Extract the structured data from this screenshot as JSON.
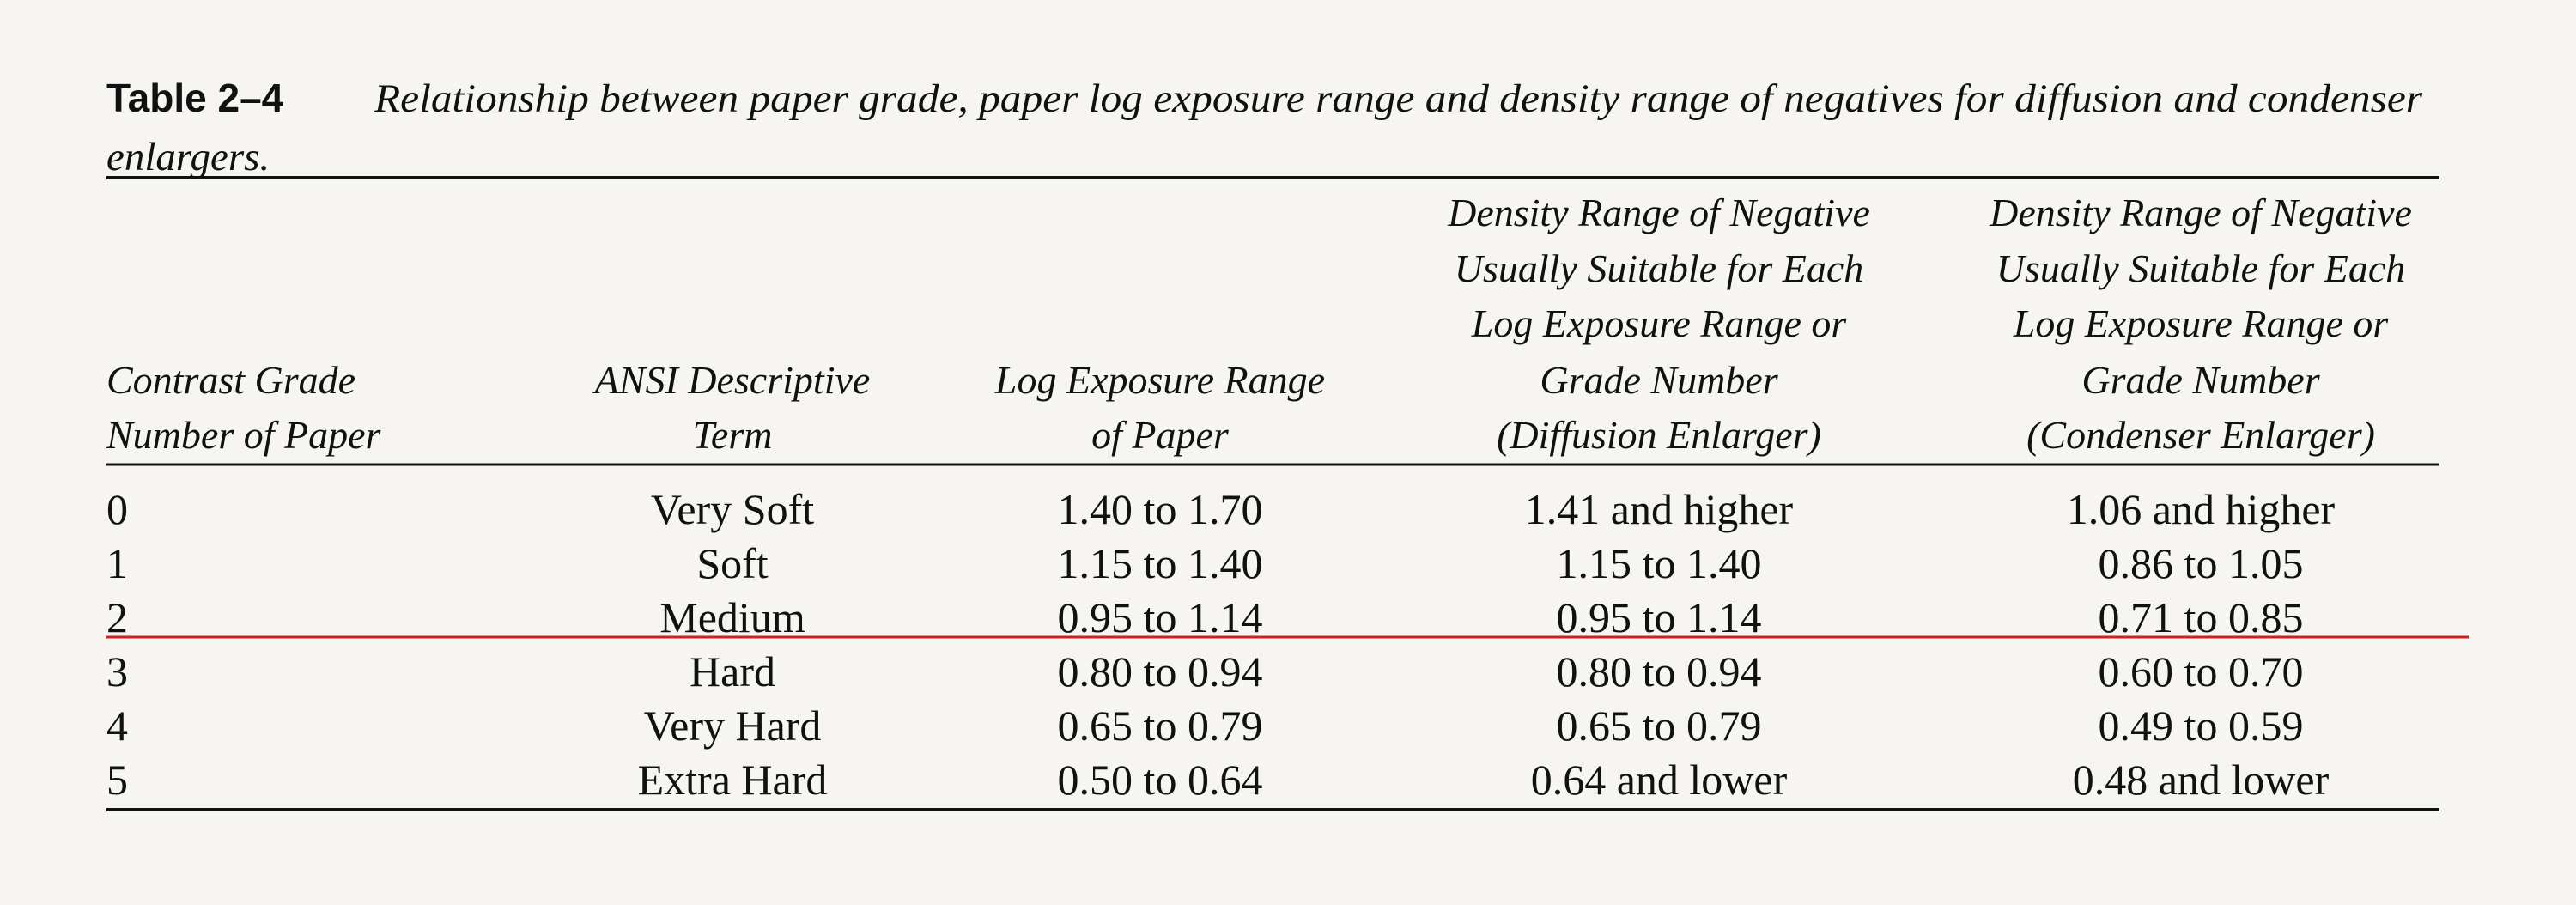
{
  "caption": {
    "label": "Table 2–4",
    "text": "Relationship between paper grade, paper log exposure range and density range of negatives for diffusion and condenser",
    "text_continued": "enlargers."
  },
  "table": {
    "headers": [
      [
        "Contrast Grade",
        "Number of Paper"
      ],
      [
        "ANSI Descriptive",
        "Term"
      ],
      [
        "Log Exposure Range",
        "of Paper"
      ],
      [
        "Density Range of Negative",
        "Usually Suitable for Each",
        "Log Exposure Range or",
        "Grade Number",
        "(Diffusion Enlarger)"
      ],
      [
        "Density Range of Negative",
        "Usually Suitable for Each",
        "Log Exposure Range or",
        "Grade Number",
        "(Condenser Enlarger)"
      ]
    ],
    "rows": [
      [
        "0",
        "Very Soft",
        "1.40 to 1.70",
        "1.41 and higher",
        "1.06 and higher"
      ],
      [
        "1",
        "Soft",
        "1.15 to 1.40",
        "1.15 to 1.40",
        "0.86 to 1.05"
      ],
      [
        "2",
        "Medium",
        "0.95 to 1.14",
        "0.95 to 1.14",
        "0.71 to 0.85"
      ],
      [
        "3",
        "Hard",
        "0.80 to 0.94",
        "0.80 to 0.94",
        "0.60 to 0.70"
      ],
      [
        "4",
        "Very Hard",
        "0.65 to 0.79",
        "0.65 to 0.79",
        "0.49 to 0.59"
      ],
      [
        "5",
        "Extra Hard",
        "0.50 to 0.64",
        "0.64 and lower",
        "0.48 and lower"
      ]
    ]
  }
}
